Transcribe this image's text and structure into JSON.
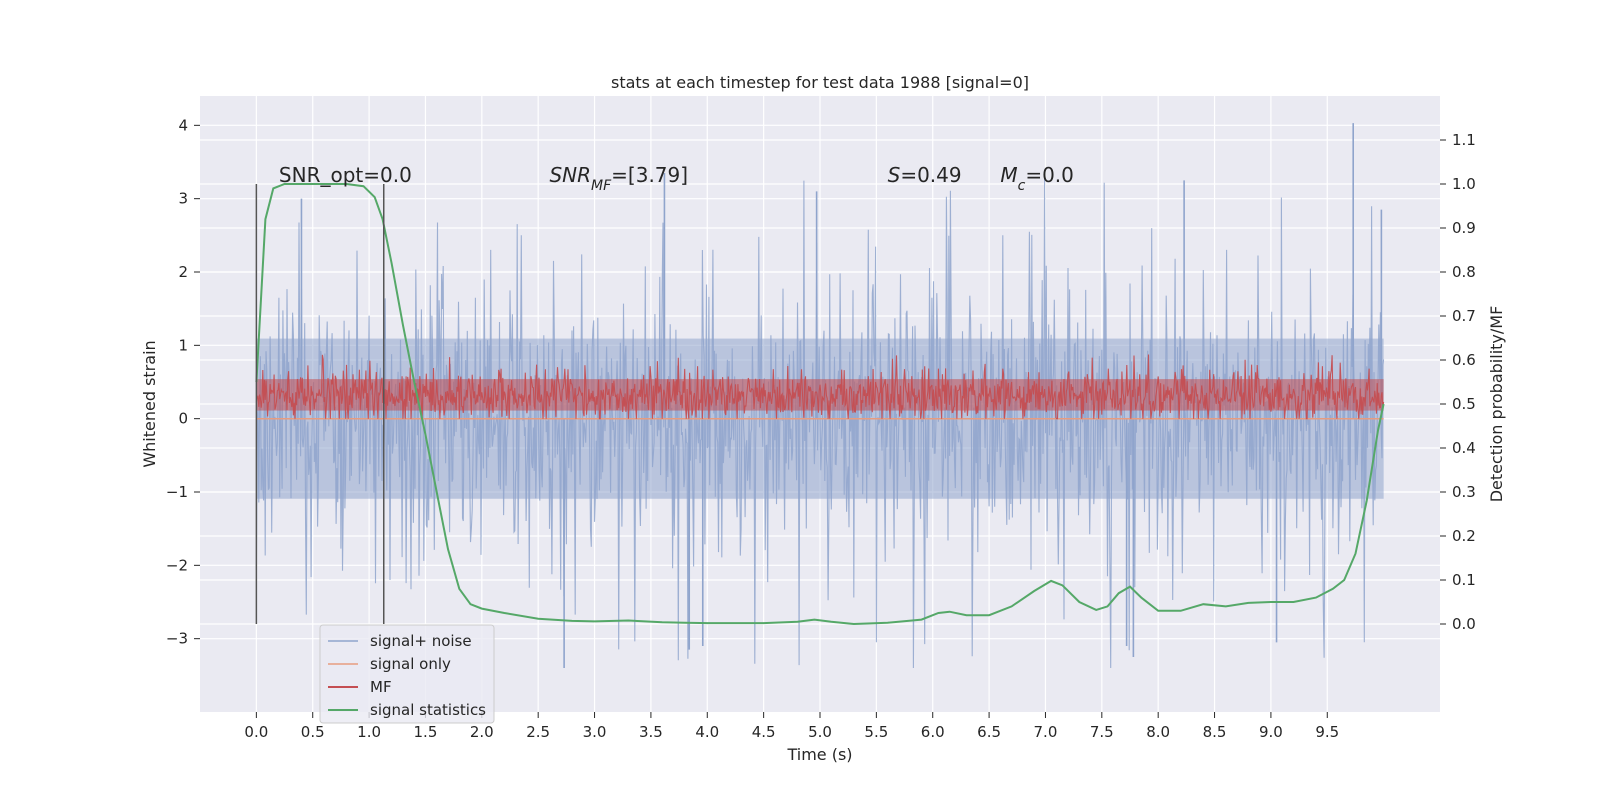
{
  "chart_data": {
    "type": "line",
    "title": "stats at each timestep for test data 1988 [signal=0]",
    "xlabel": "Time (s)",
    "ylabel_left": "Whitened strain",
    "ylabel_right": "Detection probability/MF",
    "xlim": [
      -0.5,
      10.5
    ],
    "ylim_left": [
      -4.0,
      4.4
    ],
    "ylim_right": [
      -0.2,
      1.2
    ],
    "grid": true,
    "legend_position": "lower-left",
    "x_ticks": [
      0.0,
      0.5,
      1.0,
      1.5,
      2.0,
      2.5,
      3.0,
      3.5,
      4.0,
      4.5,
      5.0,
      5.5,
      6.0,
      6.5,
      7.0,
      7.5,
      8.0,
      8.5,
      9.0,
      9.5
    ],
    "x_tick_labels": [
      "0.0",
      "0.5",
      "1.0",
      "1.5",
      "2.0",
      "2.5",
      "3.0",
      "3.5",
      "4.0",
      "4.5",
      "5.0",
      "5.5",
      "6.0",
      "6.5",
      "7.0",
      "7.5",
      "8.0",
      "8.5",
      "9.0",
      "9.5"
    ],
    "y_left_ticks": [
      4,
      3,
      2,
      1,
      0,
      -1,
      -2,
      -3
    ],
    "y_left_tick_labels": [
      "4",
      "3",
      "2",
      "1",
      "0",
      "−1",
      "−2",
      "−3"
    ],
    "y_right_ticks": [
      1.1,
      1.0,
      0.9,
      0.8,
      0.7,
      0.6,
      0.5,
      0.4,
      0.3,
      0.2,
      0.1,
      0.0
    ],
    "y_right_tick_labels": [
      "1.1",
      "1.0",
      "0.9",
      "0.8",
      "0.7",
      "0.6",
      "0.5",
      "0.4",
      "0.3",
      "0.2",
      "0.1",
      "0.0"
    ],
    "annotations": [
      {
        "x": 0.2,
        "y": 3.2,
        "axis": "left",
        "parts": [
          {
            "t": "SNR_opt=0.0",
            "style": "normal"
          }
        ]
      },
      {
        "x": 2.6,
        "y": 3.2,
        "axis": "left",
        "parts": [
          {
            "t": "SNR",
            "style": "italic"
          },
          {
            "t": "MF",
            "style": "italic-sub"
          },
          {
            "t": "=[3.79]",
            "style": "normal"
          }
        ]
      },
      {
        "x": 5.6,
        "y": 3.2,
        "axis": "left",
        "parts": [
          {
            "t": "S",
            "style": "italic"
          },
          {
            "t": "=0.49",
            "style": "normal"
          }
        ]
      },
      {
        "x": 6.6,
        "y": 3.2,
        "axis": "left",
        "parts": [
          {
            "t": "M",
            "style": "italic"
          },
          {
            "t": "c",
            "style": "italic-sub"
          },
          {
            "t": "=0.0",
            "style": "normal"
          }
        ]
      }
    ],
    "vlines": [
      {
        "x": 0.0,
        "ymin": -2.8,
        "ymax": 3.2
      },
      {
        "x": 1.13,
        "ymin": -2.8,
        "ymax": 3.2
      }
    ],
    "series": [
      {
        "name": "signal+ noise",
        "color": "#8fa4cc",
        "axis": "left",
        "kind": "noise",
        "x_range": [
          0.0,
          10.0
        ],
        "core_band": [
          -1.4,
          1.4
        ],
        "spike_range": [
          -3.4,
          4.0
        ],
        "notable_peaks": [
          {
            "x": 9.73,
            "y": 4.03
          },
          {
            "x": 3.62,
            "y": 3.35
          },
          {
            "x": 8.23,
            "y": 3.25
          },
          {
            "x": 4.97,
            "y": 3.1
          },
          {
            "x": 0.4,
            "y": 3.0
          },
          {
            "x": 9.98,
            "y": 2.85
          },
          {
            "x": 2.73,
            "y": -3.4
          },
          {
            "x": 7.78,
            "y": -3.25
          },
          {
            "x": 3.84,
            "y": -3.15
          },
          {
            "x": 3.96,
            "y": -3.1
          },
          {
            "x": 7.72,
            "y": -3.1
          },
          {
            "x": 9.05,
            "y": -3.05
          }
        ]
      },
      {
        "name": "signal only",
        "color": "#e79c80",
        "axis": "left",
        "kind": "line",
        "x": [
          0.0,
          10.0
        ],
        "y": [
          0.0,
          0.0
        ]
      },
      {
        "name": "MF",
        "color": "#c44e52",
        "axis": "left",
        "kind": "noise",
        "x_range": [
          0.0,
          10.0
        ],
        "core_band": [
          0.05,
          0.6
        ],
        "spike_range": [
          0.0,
          0.95
        ],
        "notable_peaks": []
      },
      {
        "name": "signal statistics",
        "color": "#55a868",
        "axis": "right",
        "kind": "line",
        "x": [
          0.0,
          0.08,
          0.15,
          0.25,
          0.4,
          0.6,
          0.8,
          0.95,
          1.05,
          1.12,
          1.2,
          1.3,
          1.4,
          1.5,
          1.6,
          1.7,
          1.8,
          1.9,
          2.0,
          2.2,
          2.5,
          2.8,
          3.0,
          3.3,
          3.6,
          3.8,
          4.0,
          4.5,
          4.8,
          4.95,
          5.1,
          5.3,
          5.6,
          5.9,
          6.05,
          6.15,
          6.3,
          6.5,
          6.7,
          6.9,
          7.05,
          7.15,
          7.3,
          7.45,
          7.55,
          7.65,
          7.75,
          7.85,
          8.0,
          8.2,
          8.4,
          8.6,
          8.8,
          9.0,
          9.2,
          9.4,
          9.55,
          9.65,
          9.75,
          9.85,
          9.95,
          10.0
        ],
        "y": [
          0.55,
          0.92,
          0.99,
          1.0,
          1.0,
          1.0,
          1.0,
          0.995,
          0.97,
          0.92,
          0.82,
          0.68,
          0.55,
          0.43,
          0.3,
          0.17,
          0.08,
          0.045,
          0.035,
          0.025,
          0.012,
          0.007,
          0.006,
          0.008,
          0.004,
          0.003,
          0.002,
          0.002,
          0.005,
          0.01,
          0.005,
          0.0,
          0.003,
          0.01,
          0.025,
          0.028,
          0.02,
          0.02,
          0.04,
          0.075,
          0.098,
          0.088,
          0.05,
          0.032,
          0.04,
          0.07,
          0.085,
          0.06,
          0.03,
          0.03,
          0.045,
          0.04,
          0.048,
          0.05,
          0.05,
          0.06,
          0.08,
          0.1,
          0.16,
          0.28,
          0.44,
          0.5
        ]
      }
    ]
  }
}
